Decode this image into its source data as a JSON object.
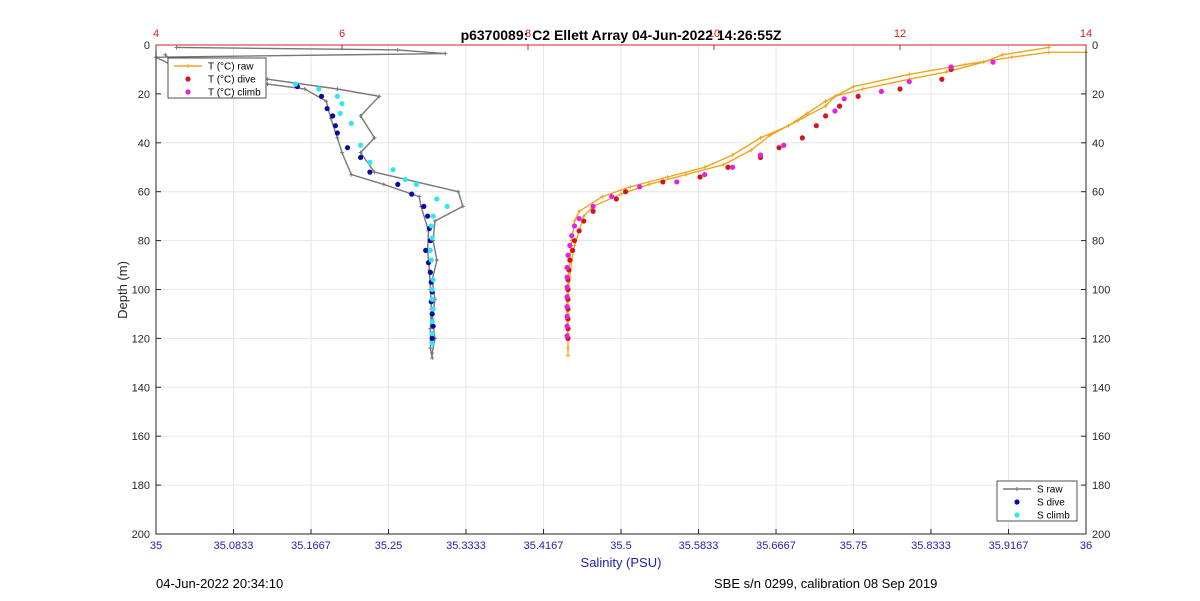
{
  "chart_data": {
    "type": "scatter",
    "title": "p6370089: C2 Ellett Array 04-Jun-2022 14:26:55Z",
    "ylabel": "Depth (m)",
    "xlabel": "Salinity (PSU)",
    "ylim": [
      0,
      200
    ],
    "y_reversed": true,
    "xlim_salinity": [
      35,
      36
    ],
    "xlim_temperature": [
      4,
      14
    ],
    "y_ticks": [
      "0",
      "20",
      "40",
      "60",
      "80",
      "100",
      "120",
      "140",
      "160",
      "180",
      "200"
    ],
    "x_ticks_salinity": [
      "35",
      "35.0833",
      "35.1667",
      "35.25",
      "35.3333",
      "35.4167",
      "35.5",
      "35.5833",
      "35.6667",
      "35.75",
      "35.8333",
      "35.9167",
      "36"
    ],
    "x_ticks_temperature": [
      "4",
      "6",
      "8",
      "10",
      "12",
      "14"
    ],
    "grid": true,
    "legend_temperature": {
      "position": "top-left",
      "entries": [
        "T (°C) raw",
        "T (°C) dive",
        "T (°C) climb"
      ]
    },
    "legend_salinity": {
      "position": "bottom-right",
      "entries": [
        "S raw",
        "S dive",
        "S climb"
      ]
    },
    "colors": {
      "s_raw": "#777777",
      "s_dive": "#0a0aa8",
      "s_climb": "#2ee8ee",
      "t_raw": "#f0a520",
      "t_dive": "#d4141e",
      "t_climb": "#e620e0",
      "top_axis": "#d62020",
      "bottom_axis": "#1f1fb0"
    },
    "series": [
      {
        "name": "S raw",
        "points": [
          [
            35.022,
            1
          ],
          [
            35.26,
            2
          ],
          [
            35.311,
            3.5
          ],
          [
            35.0,
            5
          ],
          [
            35.032,
            11
          ],
          [
            35.12,
            14
          ],
          [
            35.195,
            18
          ],
          [
            35.24,
            21
          ],
          [
            35.22,
            29
          ],
          [
            35.235,
            38
          ],
          [
            35.22,
            44
          ],
          [
            35.235,
            52
          ],
          [
            35.325,
            60
          ],
          [
            35.33,
            66
          ],
          [
            35.3,
            72
          ],
          [
            35.298,
            80
          ],
          [
            35.302,
            88
          ],
          [
            35.297,
            96
          ],
          [
            35.3,
            104
          ],
          [
            35.297,
            112
          ],
          [
            35.3,
            120
          ],
          [
            35.297,
            126
          ],
          [
            35.297,
            128
          ],
          [
            35.295,
            124
          ],
          [
            35.295,
            116
          ],
          [
            35.296,
            108
          ],
          [
            35.295,
            100
          ],
          [
            35.294,
            92
          ],
          [
            35.292,
            84
          ],
          [
            35.293,
            76
          ],
          [
            35.285,
            66
          ],
          [
            35.283,
            62
          ],
          [
            35.245,
            57
          ],
          [
            35.21,
            53
          ],
          [
            35.2,
            44
          ],
          [
            35.195,
            38
          ],
          [
            35.188,
            30
          ],
          [
            35.183,
            23
          ],
          [
            35.16,
            18
          ],
          [
            35.12,
            16
          ],
          [
            35.05,
            12
          ],
          [
            35.03,
            13
          ],
          [
            35.01,
            4
          ],
          [
            35.015,
            6
          ]
        ]
      },
      {
        "name": "S dive",
        "points": [
          [
            35.065,
            10
          ],
          [
            35.093,
            14
          ],
          [
            35.152,
            17
          ],
          [
            35.178,
            21
          ],
          [
            35.184,
            26
          ],
          [
            35.19,
            29
          ],
          [
            35.193,
            33
          ],
          [
            35.195,
            36
          ],
          [
            35.206,
            42
          ],
          [
            35.22,
            46
          ],
          [
            35.23,
            52
          ],
          [
            35.26,
            57
          ],
          [
            35.275,
            61
          ],
          [
            35.288,
            66
          ],
          [
            35.292,
            70
          ],
          [
            35.294,
            75
          ],
          [
            35.295,
            80
          ],
          [
            35.29,
            84
          ],
          [
            35.293,
            89
          ],
          [
            35.295,
            93
          ],
          [
            35.296,
            97
          ],
          [
            35.297,
            101
          ],
          [
            35.296,
            105
          ],
          [
            35.297,
            110
          ],
          [
            35.298,
            115
          ],
          [
            35.297,
            120
          ]
        ]
      },
      {
        "name": "S climb",
        "points": [
          [
            35.048,
            6
          ],
          [
            35.15,
            16
          ],
          [
            35.175,
            18
          ],
          [
            35.195,
            21
          ],
          [
            35.2,
            24
          ],
          [
            35.198,
            28
          ],
          [
            35.21,
            32
          ],
          [
            35.22,
            41
          ],
          [
            35.23,
            48
          ],
          [
            35.255,
            51
          ],
          [
            35.268,
            55
          ],
          [
            35.28,
            57
          ],
          [
            35.302,
            63
          ],
          [
            35.313,
            66
          ],
          [
            35.298,
            70
          ],
          [
            35.296,
            74
          ],
          [
            35.297,
            79
          ],
          [
            35.295,
            84
          ],
          [
            35.296,
            88
          ],
          [
            35.298,
            96
          ],
          [
            35.297,
            100
          ],
          [
            35.297,
            104
          ],
          [
            35.298,
            108
          ],
          [
            35.297,
            113
          ],
          [
            35.297,
            118
          ],
          [
            35.297,
            122
          ]
        ]
      },
      {
        "name": "T (°C) raw",
        "points": [
          [
            13.6,
            1
          ],
          [
            13.1,
            4
          ],
          [
            12.9,
            7
          ],
          [
            12.5,
            11
          ],
          [
            12.1,
            14
          ],
          [
            11.6,
            18
          ],
          [
            11.3,
            21
          ],
          [
            11.2,
            25
          ],
          [
            10.9,
            31
          ],
          [
            10.6,
            37
          ],
          [
            10.4,
            43
          ],
          [
            10.1,
            49
          ],
          [
            9.7,
            53
          ],
          [
            9.3,
            57
          ],
          [
            9.0,
            61
          ],
          [
            8.7,
            66
          ],
          [
            8.6,
            70
          ],
          [
            8.55,
            76
          ],
          [
            8.5,
            82
          ],
          [
            8.47,
            88
          ],
          [
            8.45,
            95
          ],
          [
            8.43,
            102
          ],
          [
            8.43,
            110
          ],
          [
            8.43,
            118
          ],
          [
            8.43,
            124
          ],
          [
            8.43,
            127
          ],
          [
            8.43,
            120
          ],
          [
            8.42,
            112
          ],
          [
            8.42,
            104
          ],
          [
            8.43,
            96
          ],
          [
            8.45,
            88
          ],
          [
            8.47,
            80
          ],
          [
            8.5,
            72
          ],
          [
            8.55,
            68
          ],
          [
            8.8,
            62
          ],
          [
            9.1,
            58
          ],
          [
            9.5,
            54
          ],
          [
            9.9,
            50
          ],
          [
            10.2,
            45
          ],
          [
            10.5,
            38
          ],
          [
            10.8,
            33
          ],
          [
            11.0,
            28
          ],
          [
            11.2,
            23
          ],
          [
            11.5,
            17
          ],
          [
            12.1,
            12
          ],
          [
            12.7,
            8
          ],
          [
            13.2,
            5
          ],
          [
            13.6,
            3
          ],
          [
            14.0,
            3
          ]
        ]
      },
      {
        "name": "T (°C) dive",
        "points": [
          [
            12.45,
            14
          ],
          [
            12.55,
            10
          ],
          [
            12.0,
            18
          ],
          [
            11.55,
            21
          ],
          [
            11.35,
            25
          ],
          [
            11.2,
            29
          ],
          [
            11.1,
            33
          ],
          [
            10.95,
            38
          ],
          [
            10.7,
            42
          ],
          [
            10.5,
            46
          ],
          [
            10.15,
            50
          ],
          [
            9.85,
            54
          ],
          [
            9.45,
            56
          ],
          [
            9.05,
            60
          ],
          [
            8.95,
            63
          ],
          [
            8.7,
            68
          ],
          [
            8.6,
            72
          ],
          [
            8.55,
            76
          ],
          [
            8.5,
            80
          ],
          [
            8.48,
            84
          ],
          [
            8.45,
            88
          ],
          [
            8.44,
            92
          ],
          [
            8.43,
            96
          ],
          [
            8.43,
            100
          ],
          [
            8.43,
            104
          ],
          [
            8.43,
            108
          ],
          [
            8.43,
            112
          ],
          [
            8.43,
            116
          ],
          [
            8.43,
            120
          ]
        ]
      },
      {
        "name": "T (°C) climb",
        "points": [
          [
            13.0,
            7
          ],
          [
            12.55,
            9
          ],
          [
            12.1,
            15
          ],
          [
            11.8,
            19
          ],
          [
            11.4,
            22
          ],
          [
            11.3,
            27
          ],
          [
            10.75,
            41
          ],
          [
            10.5,
            45
          ],
          [
            10.2,
            50
          ],
          [
            9.9,
            53
          ],
          [
            9.6,
            56
          ],
          [
            9.2,
            58
          ],
          [
            8.9,
            62
          ],
          [
            8.7,
            66
          ],
          [
            8.55,
            71
          ],
          [
            8.5,
            74
          ],
          [
            8.47,
            78
          ],
          [
            8.45,
            82
          ],
          [
            8.43,
            86
          ],
          [
            8.42,
            91
          ],
          [
            8.42,
            95
          ],
          [
            8.42,
            99
          ],
          [
            8.42,
            103
          ],
          [
            8.42,
            107
          ],
          [
            8.42,
            111
          ],
          [
            8.42,
            115
          ],
          [
            8.42,
            119
          ]
        ]
      }
    ]
  },
  "footer": {
    "left": "04-Jun-2022 20:34:10",
    "right": "SBE s/n 0299, calibration 08 Sep 2019"
  }
}
